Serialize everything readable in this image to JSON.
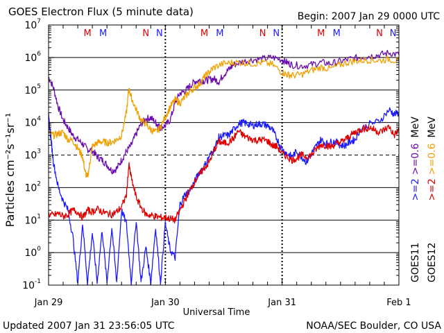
{
  "chart_data": {
    "type": "line",
    "title": "GOES Electron Flux (5 minute data)",
    "begin_label": "Begin: 2007 Jan 29 0000 UTC",
    "xlabel": "Universal Time",
    "ylabel": "Particles cm⁻²s⁻¹sr⁻¹",
    "yscale": "log",
    "ylim": [
      0.1,
      10000000
    ],
    "xlim_hours": [
      0,
      72
    ],
    "x_ticks": [
      {
        "hour": 0,
        "label": "Jan 29"
      },
      {
        "hour": 24,
        "label": "Jan 30"
      },
      {
        "hour": 48,
        "label": "Jan 31"
      },
      {
        "hour": 72,
        "label": "Feb 1"
      }
    ],
    "y_ticks": [
      {
        "exp": -1,
        "base": "10",
        "sup": "-1",
        "value": 0.1
      },
      {
        "exp": 0,
        "base": "10",
        "sup": "0",
        "value": 1
      },
      {
        "exp": 1,
        "base": "10",
        "sup": "1",
        "value": 10
      },
      {
        "exp": 2,
        "base": "10",
        "sup": "2",
        "value": 100
      },
      {
        "exp": 3,
        "base": "10",
        "sup": "3",
        "value": 1000
      },
      {
        "exp": 4,
        "base": "10",
        "sup": "4",
        "value": 10000
      },
      {
        "exp": 5,
        "base": "10",
        "sup": "5",
        "value": 100000
      },
      {
        "exp": 6,
        "base": "10",
        "sup": "6",
        "value": 1000000
      },
      {
        "exp": 7,
        "base": "10",
        "sup": "7",
        "value": 10000000
      }
    ],
    "dashed_ref_level": 1000,
    "markers": [
      {
        "hour": 8.0,
        "label": "M",
        "color": "#e00000"
      },
      {
        "hour": 11.2,
        "label": "M",
        "color": "#1a1aff"
      },
      {
        "hour": 20.0,
        "label": "N",
        "color": "#e00000"
      },
      {
        "hour": 22.8,
        "label": "N",
        "color": "#1a1aff"
      },
      {
        "hour": 32.0,
        "label": "M",
        "color": "#e00000"
      },
      {
        "hour": 35.2,
        "label": "M",
        "color": "#1a1aff"
      },
      {
        "hour": 44.0,
        "label": "N",
        "color": "#e00000"
      },
      {
        "hour": 46.8,
        "label": "N",
        "color": "#1a1aff"
      },
      {
        "hour": 56.0,
        "label": "M",
        "color": "#e00000"
      },
      {
        "hour": 59.2,
        "label": "M",
        "color": "#1a1aff"
      },
      {
        "hour": 68.0,
        "label": "N",
        "color": "#e00000"
      },
      {
        "hour": 70.8,
        "label": "N",
        "color": "#1a1aff"
      }
    ],
    "right_labels": {
      "goes11": {
        "satellite": "GOES11",
        "ge2": ">=2",
        "ge06": ">=0.6",
        "unit": "MeV",
        "color_ge2": "#1a1aff",
        "color_ge06": "#6a0dad"
      },
      "goes12": {
        "satellite": "GOES12",
        "ge2": ">=2",
        "ge06": ">=0.6",
        "unit": "MeV",
        "color_ge2": "#e00000",
        "color_ge06": "#f0a000"
      }
    },
    "series": [
      {
        "name": "GOES11 >=0.6 MeV",
        "color": "#6a0dad",
        "points": [
          [
            0,
            250000
          ],
          [
            1,
            120000
          ],
          [
            2,
            30000
          ],
          [
            3,
            12000
          ],
          [
            4,
            7000
          ],
          [
            5,
            4000
          ],
          [
            6,
            3000
          ],
          [
            7,
            2200
          ],
          [
            8,
            1500
          ],
          [
            9,
            1400
          ],
          [
            10,
            900
          ],
          [
            11,
            700
          ],
          [
            12,
            500
          ],
          [
            13,
            330
          ],
          [
            14,
            380
          ],
          [
            15,
            700
          ],
          [
            16,
            1300
          ],
          [
            17,
            2000
          ],
          [
            18,
            4500
          ],
          [
            19,
            9000
          ],
          [
            20,
            13000
          ],
          [
            21,
            14000
          ],
          [
            22,
            10000
          ],
          [
            22.5,
            8000
          ],
          [
            23,
            7000
          ],
          [
            24,
            8000
          ],
          [
            25,
            12000
          ],
          [
            26,
            40000
          ],
          [
            27,
            80000
          ],
          [
            28,
            90000
          ],
          [
            29,
            130000
          ],
          [
            30,
            180000
          ],
          [
            31,
            200000
          ],
          [
            32,
            190000
          ],
          [
            33,
            210000
          ],
          [
            34,
            220000
          ],
          [
            35,
            180000
          ],
          [
            36,
            300000
          ],
          [
            37,
            420000
          ],
          [
            38,
            600000
          ],
          [
            40,
            750000
          ],
          [
            42,
            850000
          ],
          [
            44,
            900000
          ],
          [
            46,
            1000000
          ],
          [
            48,
            850000
          ],
          [
            49,
            700000
          ],
          [
            50,
            600000
          ],
          [
            52,
            550000
          ],
          [
            54,
            600000
          ],
          [
            56,
            700000
          ],
          [
            58,
            650000
          ],
          [
            60,
            750000
          ],
          [
            62,
            900000
          ],
          [
            64,
            1000000
          ],
          [
            66,
            1100000
          ],
          [
            68,
            1200000
          ],
          [
            70,
            1400000
          ],
          [
            72,
            1200000
          ]
        ]
      },
      {
        "name": "GOES12 >=0.6 MeV",
        "color": "#f0a000",
        "points": [
          [
            0,
            5000
          ],
          [
            1,
            4000
          ],
          [
            2,
            4500
          ],
          [
            3,
            5000
          ],
          [
            4,
            3000
          ],
          [
            5,
            2800
          ],
          [
            6,
            1600
          ],
          [
            7,
            900
          ],
          [
            7.5,
            300
          ],
          [
            8,
            200
          ],
          [
            8.5,
            600
          ],
          [
            9,
            1800
          ],
          [
            10,
            2400
          ],
          [
            11,
            2600
          ],
          [
            12,
            2400
          ],
          [
            13,
            2500
          ],
          [
            14,
            3000
          ],
          [
            15,
            4000
          ],
          [
            16,
            20000
          ],
          [
            16.5,
            110000
          ],
          [
            17,
            60000
          ],
          [
            18,
            25000
          ],
          [
            19,
            12000
          ],
          [
            20,
            9000
          ],
          [
            21,
            6000
          ],
          [
            22,
            5000
          ],
          [
            23,
            7000
          ],
          [
            24,
            15000
          ],
          [
            25,
            30000
          ],
          [
            26,
            50000
          ],
          [
            27,
            40000
          ],
          [
            28,
            60000
          ],
          [
            29,
            90000
          ],
          [
            30,
            120000
          ],
          [
            31,
            150000
          ],
          [
            32,
            250000
          ],
          [
            33,
            350000
          ],
          [
            34,
            500000
          ],
          [
            36,
            650000
          ],
          [
            38,
            700000
          ],
          [
            40,
            700000
          ],
          [
            42,
            650000
          ],
          [
            44,
            700000
          ],
          [
            46,
            600000
          ],
          [
            48,
            350000
          ],
          [
            49,
            300000
          ],
          [
            50,
            280000
          ],
          [
            52,
            300000
          ],
          [
            54,
            400000
          ],
          [
            56,
            500000
          ],
          [
            58,
            450000
          ],
          [
            60,
            600000
          ],
          [
            62,
            750000
          ],
          [
            64,
            800000
          ],
          [
            66,
            850000
          ],
          [
            68,
            800000
          ],
          [
            70,
            900000
          ],
          [
            72,
            750000
          ]
        ]
      },
      {
        "name": "GOES11 >=2 MeV",
        "color": "#1a1aff",
        "points": [
          [
            0,
            15000
          ],
          [
            0.5,
            3000
          ],
          [
            1,
            600
          ],
          [
            2,
            100
          ],
          [
            3,
            40
          ],
          [
            4,
            20
          ],
          [
            5,
            3
          ],
          [
            6,
            0.12
          ],
          [
            7,
            8
          ],
          [
            8,
            0.12
          ],
          [
            9,
            4
          ],
          [
            10,
            0.12
          ],
          [
            11,
            5
          ],
          [
            12,
            0.12
          ],
          [
            13,
            6
          ],
          [
            14,
            0.12
          ],
          [
            15,
            20
          ],
          [
            16,
            8
          ],
          [
            17,
            0.12
          ],
          [
            18,
            10
          ],
          [
            19,
            0.12
          ],
          [
            20,
            1.5
          ],
          [
            21,
            0.12
          ],
          [
            22,
            6
          ],
          [
            23,
            0.12
          ],
          [
            24,
            8
          ],
          [
            25,
            1.2
          ],
          [
            26,
            0.7
          ],
          [
            27,
            30
          ],
          [
            28,
            60
          ],
          [
            29,
            80
          ],
          [
            30,
            150
          ],
          [
            31,
            300
          ],
          [
            32,
            450
          ],
          [
            33,
            900
          ],
          [
            34,
            1500
          ],
          [
            35,
            3500
          ],
          [
            36,
            4000
          ],
          [
            37,
            4000
          ],
          [
            38,
            6000
          ],
          [
            39,
            9000
          ],
          [
            40,
            10000
          ],
          [
            41,
            9000
          ],
          [
            42,
            8000
          ],
          [
            43,
            9000
          ],
          [
            44,
            9000
          ],
          [
            45,
            8000
          ],
          [
            46,
            6000
          ],
          [
            47,
            3000
          ],
          [
            48,
            1500
          ],
          [
            49,
            1100
          ],
          [
            50,
            900
          ],
          [
            51,
            1300
          ],
          [
            52,
            900
          ],
          [
            53,
            600
          ],
          [
            54,
            1100
          ],
          [
            55,
            1900
          ],
          [
            56,
            3000
          ],
          [
            57,
            2200
          ],
          [
            58,
            2500
          ],
          [
            59,
            2600
          ],
          [
            60,
            2000
          ],
          [
            61,
            2000
          ],
          [
            62,
            2600
          ],
          [
            63,
            3000
          ],
          [
            64,
            6000
          ],
          [
            66,
            9000
          ],
          [
            68,
            11000
          ],
          [
            70,
            25000
          ],
          [
            71,
            18000
          ],
          [
            72,
            20000
          ]
        ]
      },
      {
        "name": "GOES12 >=2 MeV",
        "color": "#e00000",
        "points": [
          [
            0,
            15
          ],
          [
            1,
            14
          ],
          [
            2,
            16
          ],
          [
            3,
            13
          ],
          [
            4,
            15
          ],
          [
            5,
            20
          ],
          [
            6,
            18
          ],
          [
            7,
            12
          ],
          [
            8,
            20
          ],
          [
            9,
            18
          ],
          [
            10,
            22
          ],
          [
            11,
            18
          ],
          [
            12,
            16
          ],
          [
            13,
            15
          ],
          [
            14,
            18
          ],
          [
            15,
            25
          ],
          [
            16,
            60
          ],
          [
            16.5,
            500
          ],
          [
            17,
            200
          ],
          [
            18,
            50
          ],
          [
            19,
            25
          ],
          [
            20,
            15
          ],
          [
            21,
            14
          ],
          [
            22,
            13
          ],
          [
            23,
            12
          ],
          [
            24,
            12
          ],
          [
            25,
            11
          ],
          [
            26,
            10
          ],
          [
            27,
            20
          ],
          [
            28,
            40
          ],
          [
            29,
            80
          ],
          [
            30,
            150
          ],
          [
            31,
            250
          ],
          [
            32,
            400
          ],
          [
            33,
            600
          ],
          [
            34,
            1400
          ],
          [
            35,
            2600
          ],
          [
            36,
            2300
          ],
          [
            37,
            2500
          ],
          [
            38,
            3200
          ],
          [
            39,
            5500
          ],
          [
            40,
            4000
          ],
          [
            41,
            3400
          ],
          [
            42,
            3000
          ],
          [
            43,
            2800
          ],
          [
            44,
            3000
          ],
          [
            45,
            2700
          ],
          [
            46,
            2000
          ],
          [
            47,
            1800
          ],
          [
            48,
            1100
          ],
          [
            49,
            900
          ],
          [
            50,
            700
          ],
          [
            51,
            800
          ],
          [
            52,
            1000
          ],
          [
            53,
            900
          ],
          [
            54,
            1000
          ],
          [
            55,
            1500
          ],
          [
            56,
            2100
          ],
          [
            57,
            2000
          ],
          [
            58,
            1800
          ],
          [
            59,
            2200
          ],
          [
            60,
            2500
          ],
          [
            61,
            3000
          ],
          [
            62,
            4000
          ],
          [
            63,
            5000
          ],
          [
            64,
            6000
          ],
          [
            65,
            6500
          ],
          [
            66,
            7000
          ],
          [
            67,
            6000
          ],
          [
            68,
            5000
          ],
          [
            69,
            6000
          ],
          [
            70,
            7500
          ],
          [
            71,
            4000
          ],
          [
            72,
            6000
          ]
        ]
      }
    ]
  },
  "footer": {
    "updated": "Updated 2007 Jan 31 23:56:05 UTC",
    "source": "NOAA/SEC Boulder, CO USA"
  }
}
